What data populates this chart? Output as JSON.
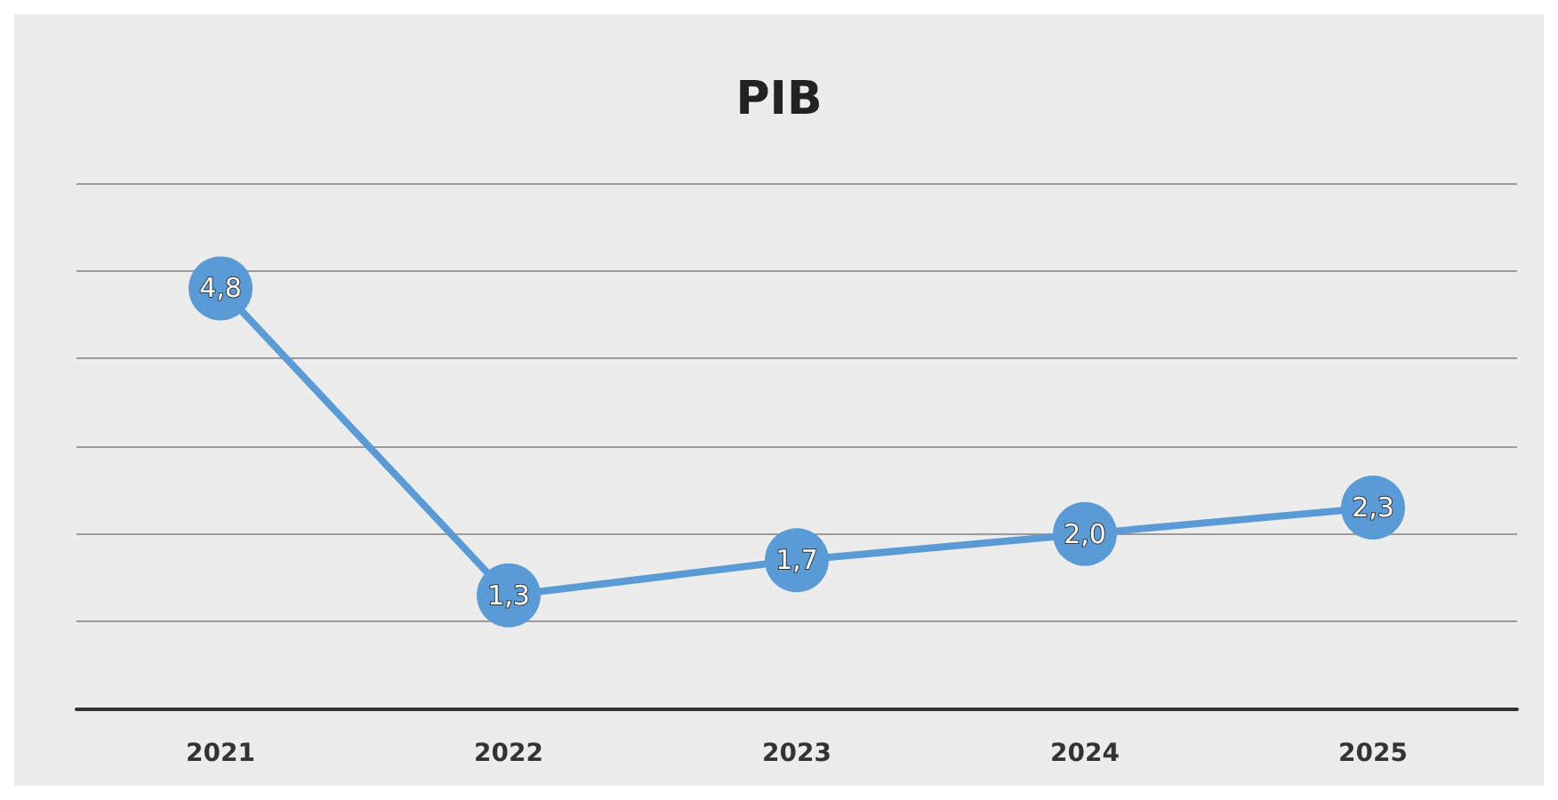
{
  "chart_data": {
    "type": "line",
    "title": "PIB",
    "categories": [
      "2021",
      "2022",
      "2023",
      "2024",
      "2025"
    ],
    "values": [
      4.8,
      1.3,
      1.7,
      2.0,
      2.3
    ],
    "value_labels": [
      "4,8",
      "1,3",
      "1,7",
      "2,0",
      "2,3"
    ],
    "color": "#5b9bd5",
    "ylim": [
      0,
      6
    ],
    "yticks": [
      {
        "value": 0,
        "label": null
      },
      {
        "value": 1,
        "label": null
      },
      {
        "value": 2,
        "label": null
      },
      {
        "value": 3,
        "label": null
      },
      {
        "value": 4,
        "label": null
      },
      {
        "value": 5,
        "label": null
      },
      {
        "value": 6,
        "label": null
      }
    ],
    "tick_labels": "x",
    "grid": "y",
    "marker": "circle",
    "line_style": "solid"
  }
}
